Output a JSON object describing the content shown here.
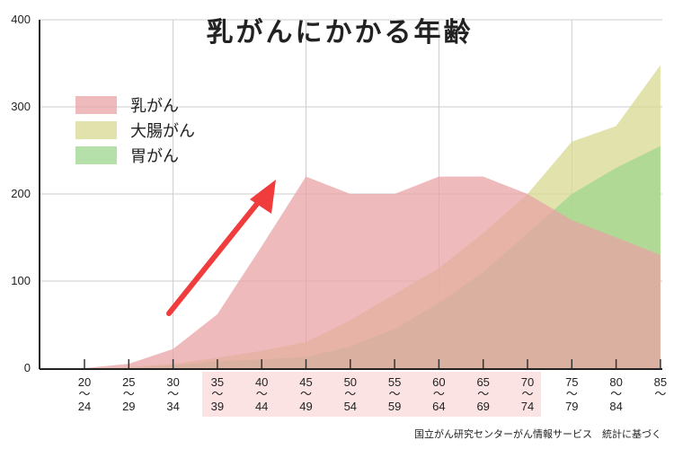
{
  "chart_data": {
    "type": "area",
    "title": "乳がんにかかる年齢",
    "categories": [
      "20〜24",
      "25〜29",
      "30〜34",
      "35〜39",
      "40〜44",
      "45〜49",
      "50〜54",
      "55〜59",
      "60〜64",
      "65〜69",
      "70〜74",
      "75〜79",
      "80〜84",
      "85〜"
    ],
    "category_labels": [
      {
        "from": "20",
        "sep": "〜",
        "to": "24"
      },
      {
        "from": "25",
        "sep": "〜",
        "to": "29"
      },
      {
        "from": "30",
        "sep": "〜",
        "to": "34"
      },
      {
        "from": "35",
        "sep": "〜",
        "to": "39"
      },
      {
        "from": "40",
        "sep": "〜",
        "to": "44"
      },
      {
        "from": "45",
        "sep": "〜",
        "to": "49"
      },
      {
        "from": "50",
        "sep": "〜",
        "to": "54"
      },
      {
        "from": "55",
        "sep": "〜",
        "to": "59"
      },
      {
        "from": "60",
        "sep": "〜",
        "to": "64"
      },
      {
        "from": "65",
        "sep": "〜",
        "to": "69"
      },
      {
        "from": "70",
        "sep": "〜",
        "to": "74"
      },
      {
        "from": "75",
        "sep": "〜",
        "to": "79"
      },
      {
        "from": "80",
        "sep": "〜",
        "to": "84"
      },
      {
        "from": "85",
        "sep": "〜",
        "to": ""
      }
    ],
    "yticks": [
      "0",
      "100",
      "200",
      "300",
      "400"
    ],
    "ylim": [
      0,
      400
    ],
    "grid": true,
    "legend_position": "top-left",
    "series": [
      {
        "name": "乳がん",
        "color": "#e8a3a6",
        "values": [
          0,
          5,
          22,
          62,
          140,
          220,
          200,
          200,
          220,
          220,
          200,
          170,
          150,
          130
        ]
      },
      {
        "name": "大腸がん",
        "color": "#d8da90",
        "values": [
          0,
          1,
          5,
          12,
          20,
          30,
          55,
          85,
          115,
          155,
          200,
          260,
          278,
          348
        ]
      },
      {
        "name": "胃がん",
        "color": "#9ed58e",
        "values": [
          0,
          0,
          3,
          8,
          10,
          13,
          25,
          45,
          75,
          110,
          155,
          200,
          230,
          255
        ]
      }
    ],
    "highlight_range": [
      "35〜39",
      "70〜74"
    ],
    "highlight_color": "#fbe3e4",
    "arrow_color": "#f03c3c",
    "source": "国立がん研究センターがん情報サービス　統計に基づく"
  }
}
